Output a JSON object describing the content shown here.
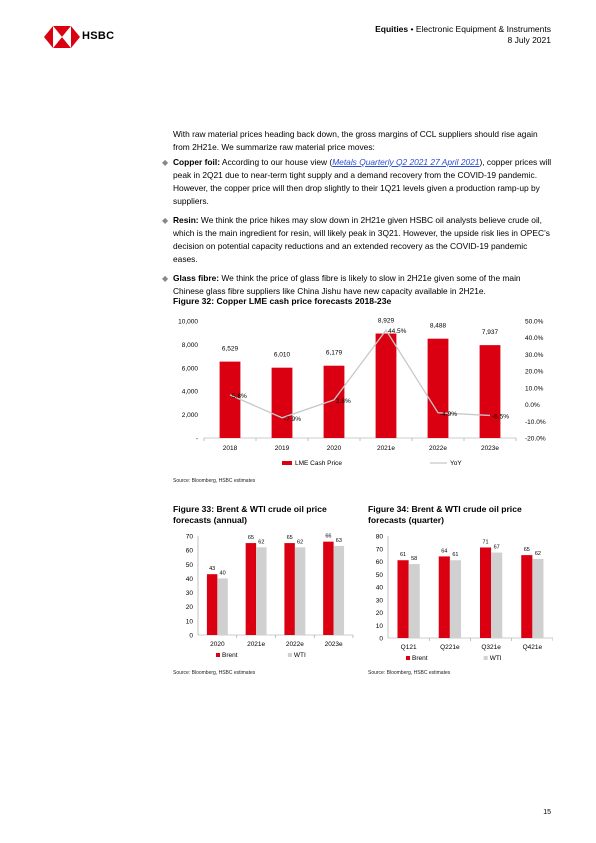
{
  "header": {
    "brand": "HSBC",
    "section": "Equities",
    "subsection": "Electronic Equipment & Instruments",
    "date": "8 July 2021"
  },
  "intro": "With raw material prices heading back down, the gross margins of CCL suppliers should rise again from 2H21e. We summarize raw material price moves:",
  "bullets": [
    {
      "title": "Copper foil:",
      "text_a": " According to our house view (",
      "link": "Metals Quarterly Q2 2021 27 April 2021",
      "text_b": "), copper prices will peak in 2Q21 due to near-term tight supply and a demand recovery from the COVID-19 pandemic. However, the copper price will then drop slightly to their 1Q21 levels given a production ramp-up by suppliers."
    },
    {
      "title": "Resin:",
      "text": " We think the price hikes may slow down in 2H21e given HSBC oil analysts believe crude oil, which is the main ingredient for resin, will likely peak in 3Q21. However, the upside risk lies in OPEC’s decision on potential capacity reductions and an extended recovery as the COVID-19 pandemic eases."
    },
    {
      "title": "Glass fibre:",
      "text": " We think the price of glass fibre is likely to slow in 2H21e given some of the main Chinese glass fibre suppliers like China Jishu have new capacity available in 2H21e."
    }
  ],
  "fig32": {
    "title": "Figure 32: Copper LME cash price forecasts 2018-23e",
    "source": "Source: Bloomberg, HSBC estimates"
  },
  "fig33": {
    "title": "Figure 33: Brent & WTI crude oil price forecasts (annual)",
    "source": "Source: Bloomberg, HSBC estimates"
  },
  "fig34": {
    "title": "Figure 34: Brent & WTI crude oil price forecasts (quarter)",
    "source": "Source: Bloomberg, HSBC estimates"
  },
  "page_number": "15",
  "colors": {
    "red": "#db0011",
    "grey": "#d0d0d0",
    "line": "#c8c8c8"
  },
  "chart_data": [
    {
      "type": "bar",
      "categories": [
        "2018",
        "2019",
        "2020",
        "2021e",
        "2022e",
        "2023e"
      ],
      "series": [
        {
          "name": "LME Cash Price",
          "type": "bar",
          "axis": "left",
          "values": [
            6529,
            6010,
            6179,
            8929,
            8488,
            7937
          ],
          "labels": [
            "6,529",
            "6,010",
            "6,179",
            "8,929",
            "8,488",
            "7,937"
          ]
        },
        {
          "name": "YoY",
          "type": "line",
          "axis": "right",
          "values": [
            5.8,
            -7.9,
            2.8,
            44.5,
            -4.9,
            -6.5
          ],
          "labels": [
            "5.8%",
            "-7.9%",
            "2.8%",
            "44.5%",
            "-4.9%",
            "-6.5%"
          ]
        }
      ],
      "ylim": [
        0,
        10000
      ],
      "yticks": [
        "-",
        "2,000",
        "4,000",
        "6,000",
        "8,000",
        "10,000"
      ],
      "y2lim": [
        -20,
        50
      ],
      "y2ticks": [
        "-20.0%",
        "-10.0%",
        "0.0%",
        "10.0%",
        "20.0%",
        "30.0%",
        "40.0%",
        "50.0%"
      ],
      "legend": "bottom"
    },
    {
      "type": "bar",
      "categories": [
        "2020",
        "2021e",
        "2022e",
        "2023e"
      ],
      "series": [
        {
          "name": "Brent",
          "values": [
            43,
            65,
            65,
            66
          ]
        },
        {
          "name": "WTI",
          "values": [
            40,
            62,
            62,
            63
          ]
        }
      ],
      "ylim": [
        0,
        70
      ],
      "yticks": [
        "0",
        "10",
        "20",
        "30",
        "40",
        "50",
        "60",
        "70"
      ],
      "legend": "bottom"
    },
    {
      "type": "bar",
      "categories": [
        "Q121",
        "Q221e",
        "Q321e",
        "Q421e"
      ],
      "series": [
        {
          "name": "Brent",
          "values": [
            61,
            64,
            71,
            65
          ]
        },
        {
          "name": "WTI",
          "values": [
            58,
            61,
            67,
            62
          ]
        }
      ],
      "ylim": [
        0,
        80
      ],
      "yticks": [
        "0",
        "10",
        "20",
        "30",
        "40",
        "50",
        "60",
        "70",
        "80"
      ],
      "legend": "bottom"
    }
  ]
}
